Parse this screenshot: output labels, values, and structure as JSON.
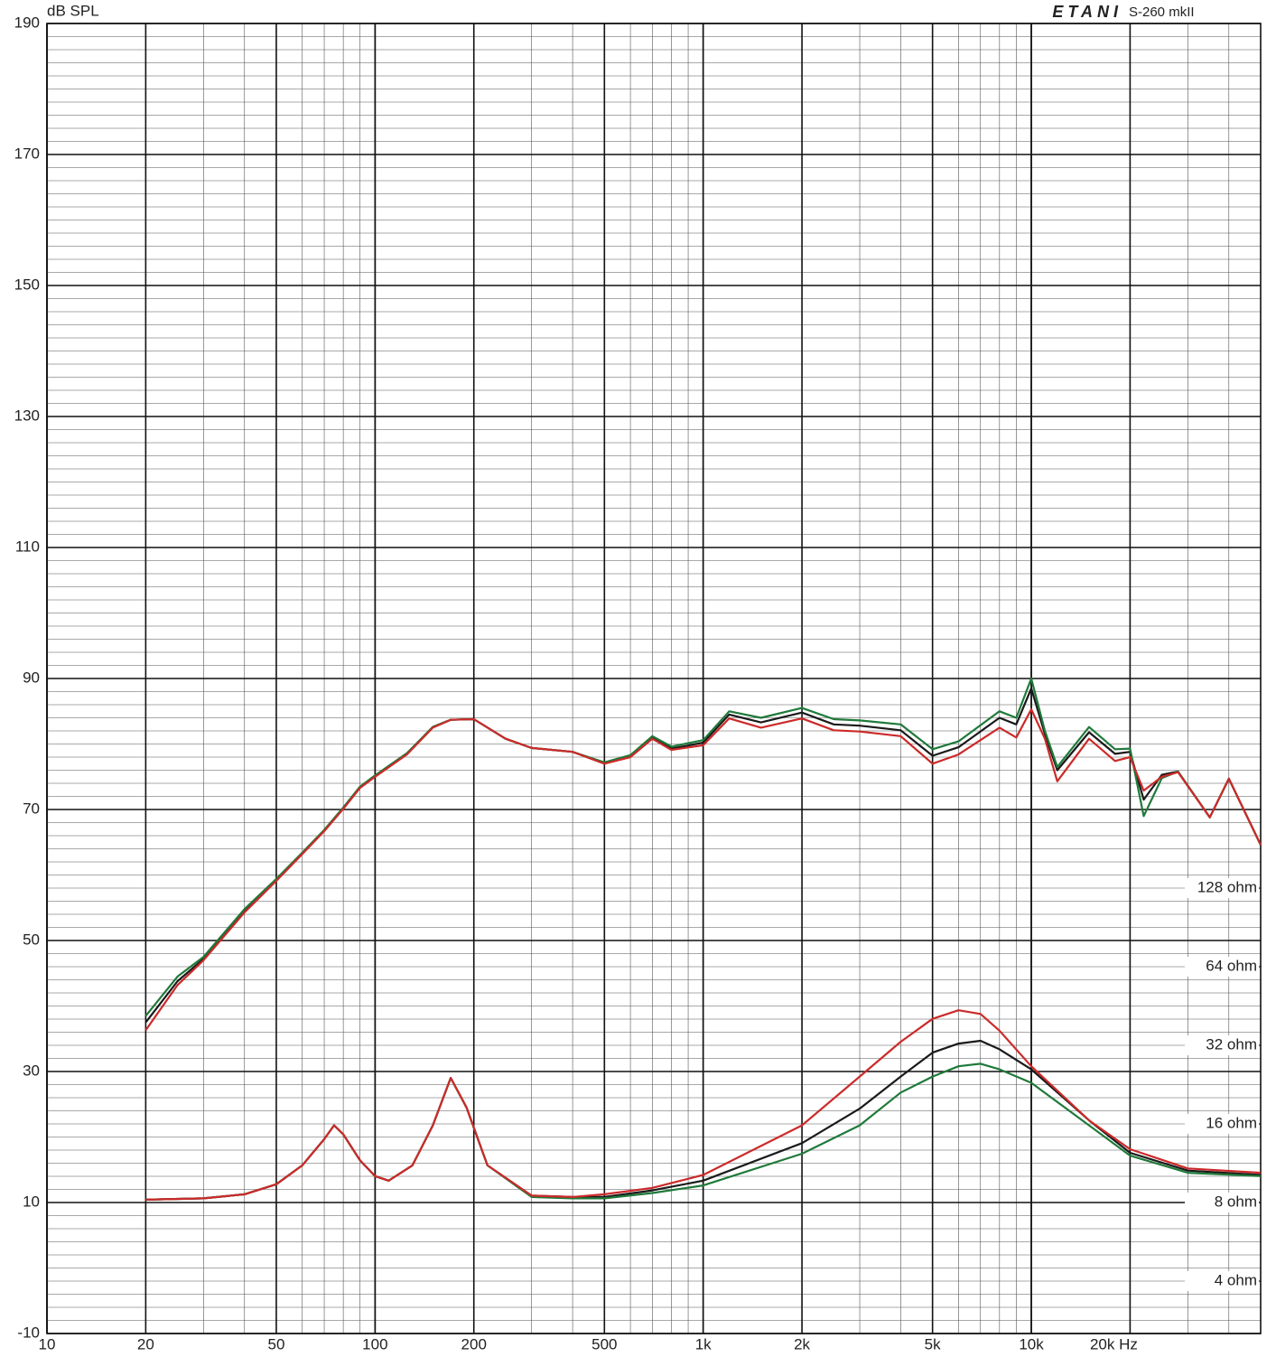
{
  "chart_data": {
    "type": "line",
    "title": "ETANI",
    "subtitle": "S-260 mkII",
    "ylabel": "dB SPL",
    "xscale": "log",
    "y2scale": "log",
    "grid": true,
    "minor_grid": true,
    "xlim": [
      10,
      50000
    ],
    "ylim": [
      -10,
      190
    ],
    "y2lim": [
      2.52,
      262144
    ],
    "xticks": [
      10,
      20,
      50,
      100,
      200,
      500,
      {
        "value": 1000,
        "label": "1k"
      },
      {
        "value": 2000,
        "label": "2k"
      },
      {
        "value": 5000,
        "label": "5k"
      },
      {
        "value": 10000,
        "label": "10k"
      },
      {
        "value": 20000,
        "label": "20k Hz"
      }
    ],
    "yticks": [
      -10,
      10,
      30,
      50,
      70,
      90,
      110,
      130,
      150,
      170,
      190
    ],
    "y2ticks": [
      {
        "value": 4,
        "label": "4 ohm"
      },
      {
        "value": 8,
        "label": "8 ohm"
      },
      {
        "value": 16,
        "label": "16 ohm"
      },
      {
        "value": 32,
        "label": "32 ohm"
      },
      {
        "value": 64,
        "label": "64 ohm"
      },
      {
        "value": 128,
        "label": "128 ohm"
      }
    ],
    "series": [
      {
        "color": "#1a1a1a",
        "x": [
          20,
          25,
          30,
          40,
          50,
          60,
          70,
          80,
          90,
          100,
          125,
          150,
          170,
          200,
          250,
          300,
          400,
          500,
          600,
          700,
          800,
          1000,
          1200,
          1500,
          2000,
          2500,
          3000,
          4000,
          5000,
          6000,
          8000,
          9000,
          10000,
          11000,
          12000,
          15000,
          18000,
          20000,
          22000,
          25000,
          28000,
          35000,
          40000,
          50000
        ],
        "values": [
          37.5,
          43.8,
          47.2,
          54.5,
          59.2,
          63.3,
          66.8,
          70.2,
          73.4,
          75.1,
          78.5,
          82.6,
          83.7,
          83.8,
          80.8,
          79.4,
          78.8,
          77.1,
          78.1,
          81.0,
          79.3,
          80.2,
          84.5,
          83.3,
          84.8,
          83.0,
          82.8,
          82.1,
          78.2,
          79.5,
          84.0,
          83.0,
          88.5,
          81.5,
          76.0,
          81.8,
          78.5,
          78.8,
          71.5,
          75.3,
          75.8,
          68.8,
          74.7,
          64.6
        ]
      },
      {
        "color": "#1f7a3a",
        "x": [
          20,
          25,
          30,
          40,
          50,
          60,
          70,
          80,
          90,
          100,
          125,
          150,
          170,
          200,
          250,
          300,
          400,
          500,
          600,
          700,
          800,
          1000,
          1200,
          1500,
          2000,
          2500,
          3000,
          4000,
          5000,
          6000,
          8000,
          9000,
          10000,
          11000,
          12000,
          15000,
          18000,
          20000,
          22000,
          25000,
          28000,
          35000,
          40000,
          50000
        ],
        "values": [
          38.5,
          44.5,
          47.5,
          54.8,
          59.4,
          63.4,
          66.9,
          70.3,
          73.5,
          75.2,
          78.6,
          82.6,
          83.7,
          83.8,
          80.8,
          79.4,
          78.8,
          77.2,
          78.3,
          81.2,
          79.6,
          80.6,
          85.0,
          84.0,
          85.5,
          83.8,
          83.6,
          83.0,
          79.2,
          80.4,
          85.0,
          84.0,
          90.0,
          82.0,
          76.5,
          82.6,
          79.2,
          79.3,
          69.0,
          74.8,
          75.8,
          68.8,
          74.7,
          64.6
        ]
      },
      {
        "color": "#cc2a2a",
        "x": [
          20,
          25,
          30,
          40,
          50,
          60,
          70,
          80,
          90,
          100,
          125,
          150,
          170,
          200,
          250,
          300,
          400,
          500,
          600,
          700,
          800,
          1000,
          1200,
          1500,
          2000,
          2500,
          3000,
          4000,
          5000,
          6000,
          8000,
          9000,
          10000,
          11000,
          12000,
          15000,
          18000,
          20000,
          22000,
          25000,
          28000,
          35000,
          40000,
          50000
        ],
        "values": [
          36.3,
          43.2,
          47.0,
          54.3,
          59.1,
          63.2,
          66.7,
          70.1,
          73.3,
          75.0,
          78.4,
          82.5,
          83.7,
          83.8,
          80.8,
          79.4,
          78.8,
          77.0,
          78.0,
          80.8,
          79.1,
          79.8,
          83.9,
          82.5,
          83.9,
          82.1,
          81.9,
          81.2,
          77.0,
          78.4,
          82.5,
          81.0,
          85.3,
          80.8,
          74.3,
          80.8,
          77.4,
          78.0,
          72.9,
          75.0,
          75.7,
          68.8,
          74.7,
          64.6
        ]
      },
      {
        "color": "#1a1a1a",
        "axis": "y2",
        "x": [
          20,
          30,
          40,
          50,
          60,
          70,
          75,
          80,
          90,
          100,
          110,
          130,
          150,
          170,
          190,
          220,
          300,
          400,
          500,
          700,
          1000,
          2000,
          3000,
          4000,
          5000,
          6000,
          7000,
          8000,
          10000,
          15000,
          20000,
          30000,
          50000
        ],
        "values": [
          8.2,
          8.3,
          8.6,
          9.4,
          11.1,
          14.0,
          15.8,
          14.6,
          11.6,
          10.1,
          9.7,
          11.1,
          15.8,
          24.0,
          18.5,
          11.1,
          8.5,
          8.4,
          8.4,
          8.9,
          9.7,
          13.5,
          18.3,
          24.3,
          30.0,
          32.5,
          33.3,
          30.9,
          25.9,
          16.5,
          12.4,
          10.6,
          10.2
        ]
      },
      {
        "color": "#1f7a3a",
        "axis": "y2",
        "x": [
          20,
          30,
          40,
          50,
          60,
          70,
          75,
          80,
          90,
          100,
          110,
          130,
          150,
          170,
          190,
          220,
          300,
          400,
          500,
          700,
          1000,
          2000,
          3000,
          4000,
          5000,
          6000,
          7000,
          8000,
          10000,
          15000,
          20000,
          30000,
          50000
        ],
        "values": [
          8.2,
          8.3,
          8.6,
          9.4,
          11.1,
          14.0,
          15.8,
          14.6,
          11.6,
          10.1,
          9.7,
          11.1,
          15.8,
          24.0,
          18.5,
          11.1,
          8.4,
          8.3,
          8.3,
          8.7,
          9.3,
          12.3,
          15.8,
          21.1,
          24.3,
          26.6,
          27.2,
          25.9,
          23.0,
          15.8,
          12.1,
          10.4,
          10.1
        ]
      },
      {
        "color": "#cc2a2a",
        "axis": "y2",
        "x": [
          20,
          30,
          40,
          50,
          60,
          70,
          75,
          80,
          90,
          100,
          110,
          130,
          150,
          170,
          190,
          220,
          300,
          400,
          500,
          700,
          1000,
          2000,
          3000,
          4000,
          5000,
          6000,
          7000,
          8000,
          10000,
          15000,
          20000,
          30000,
          50000
        ],
        "values": [
          8.2,
          8.3,
          8.6,
          9.4,
          11.1,
          14.0,
          15.8,
          14.6,
          11.6,
          10.1,
          9.7,
          11.1,
          15.8,
          24.0,
          18.5,
          11.1,
          8.5,
          8.4,
          8.6,
          9.1,
          10.2,
          15.8,
          24.3,
          33.0,
          40.4,
          43.6,
          42.2,
          36.4,
          26.6,
          16.5,
          12.8,
          10.8,
          10.4
        ]
      }
    ]
  }
}
